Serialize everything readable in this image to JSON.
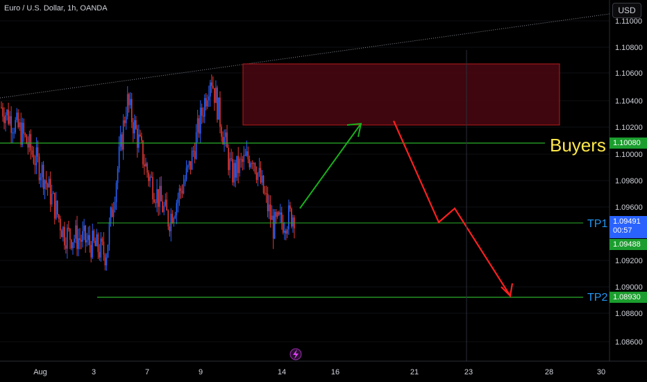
{
  "header": {
    "title": "Euro / U.S. Dollar, 1h, OANDA",
    "currency_button": "USD"
  },
  "colors": {
    "background": "#000000",
    "up_candle": "#2962ff",
    "down_candle": "#e53935",
    "level_line": "#2bb02b",
    "zone_fill": "#4a0712",
    "zone_border": "#b71c1c",
    "arrow_up": "#19b01c",
    "arrow_down": "#ff1f1f",
    "price_label_green": "#1b9e2e",
    "price_label_blue": "#2962ff",
    "buyers_text": "#ffe84a",
    "tp_text": "#2196f3"
  },
  "chart_data": {
    "type": "candlestick",
    "symbol": "Euro / U.S. Dollar",
    "timeframe": "1h",
    "source": "OANDA",
    "x_tick_labels": [
      "Aug",
      "3",
      "7",
      "9",
      "14",
      "16",
      "21",
      "23",
      "28",
      "30"
    ],
    "y_tick_labels": [
      "1.11000",
      "1.10800",
      "1.10600",
      "1.10400",
      "1.10200",
      "1.10000",
      "1.09800",
      "1.09600",
      "1.09200",
      "1.09000",
      "1.08800",
      "1.08600"
    ],
    "ylim": [
      1.0845,
      1.1115
    ],
    "price_series": {
      "description": "hourly EUR/USD candles from late July to Aug 14",
      "x_day_index": [
        0,
        1,
        2,
        3,
        4,
        5,
        6,
        7,
        8,
        9,
        10,
        11,
        12,
        13,
        14
      ],
      "close_path": [
        1.1035,
        1.1015,
        1.0985,
        1.094,
        1.0935,
        1.0925,
        1.104,
        1.0985,
        1.095,
        1.099,
        1.106,
        1.0985,
        1.1,
        1.0945,
        1.0955
      ]
    },
    "levels": [
      {
        "label": "Buyers",
        "value": 1.1008
      },
      {
        "label": "TP1",
        "value": 1.09491
      },
      {
        "label": "TP2",
        "value": 1.0893
      }
    ],
    "resistance_zone": {
      "top": 1.1068,
      "bottom": 1.1022
    },
    "price_labels": [
      {
        "value": "1.10080",
        "style": "green"
      },
      {
        "value": "1.09491",
        "style": "blue"
      },
      {
        "value": "00:57",
        "style": "blue"
      },
      {
        "value": "1.09488",
        "style": "green"
      },
      {
        "value": "1.08930",
        "style": "green"
      }
    ],
    "annotations": [
      "Buyers",
      "TP1",
      "TP2"
    ]
  }
}
